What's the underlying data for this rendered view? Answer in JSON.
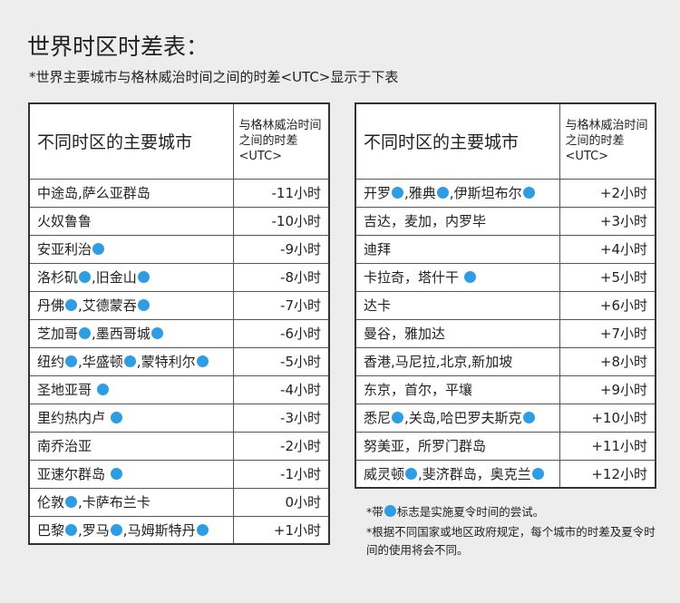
{
  "header": {
    "title": "世界时区时差表：",
    "subtitle": "*世界主要城市与格林威治时间之间的时差<UTC>显示于下表"
  },
  "left_table": {
    "header": [
      "不同时区的主要城市",
      "与格林威治时间之间的时差<UTC>"
    ],
    "rows": [
      {
        "city": [
          "中途岛,萨么亚群岛"
        ],
        "offset": "-11小时"
      },
      {
        "city": [
          "火奴鲁鲁"
        ],
        "offset": "-10小时"
      },
      {
        "city": [
          "安亚利治"
        ],
        "offset": "-9小时"
      },
      {
        "city": [
          "洛杉矶",
          ",旧金山"
        ],
        "offset": "-8小时"
      },
      {
        "city": [
          "丹佛",
          ",艾德蒙吞"
        ],
        "offset": "-7小时"
      },
      {
        "city": [
          "芝加哥",
          ",墨西哥城"
        ],
        "offset": "-6小时"
      },
      {
        "city": [
          "纽约",
          ",华盛顿",
          ",蒙特利尔"
        ],
        "offset": "-5小时"
      },
      {
        "city": [
          "圣地亚哥"
        ],
        "offset": "-4小时"
      },
      {
        "city": [
          "里约热内卢"
        ],
        "offset": "-3小时"
      },
      {
        "city": [
          "南乔治亚"
        ],
        "offset": "-2小时"
      },
      {
        "city": [
          "亚速尔群岛"
        ],
        "offset": "-1小时"
      },
      {
        "city": [
          "伦敦",
          ",卡萨布兰卡"
        ],
        "offset": "0小时"
      },
      {
        "city": [
          "巴黎",
          ",罗马",
          ",马姆斯特丹"
        ],
        "offset": "+1小时"
      }
    ]
  },
  "right_table": {
    "header": [
      "不同时区的主要城市",
      "与格林威治时间之间的时差<UTC>"
    ],
    "rows": [
      {
        "city": [
          "开罗",
          ",雅典",
          ",伊斯坦布尔"
        ],
        "offset": "+2小时"
      },
      {
        "city": [
          "吉达，麦加，内罗毕"
        ],
        "offset": "+3小时"
      },
      {
        "city": [
          "迪拜"
        ],
        "offset": "+4小时"
      },
      {
        "city": [
          "卡拉奇，塔什干"
        ],
        "offset": "+5小时"
      },
      {
        "city": [
          "达卡"
        ],
        "offset": "+6小时"
      },
      {
        "city": [
          "曼谷，雅加达"
        ],
        "offset": "+7小时"
      },
      {
        "city": [
          "香港,马尼拉,北京,新加坡"
        ],
        "offset": "+8小时"
      },
      {
        "city": [
          "东京，首尔，平壤"
        ],
        "offset": "+9小时"
      },
      {
        "city": [
          "悉尼",
          ",关岛,哈巴罗夫斯克"
        ],
        "offset": "+10小时"
      },
      {
        "city": [
          "努美亚，所罗门群岛"
        ],
        "offset": "+11小时"
      },
      {
        "city": [
          "威灵顿",
          ",斐济群岛，奥克兰"
        ],
        "offset": "+12小时"
      }
    ]
  },
  "notes": {
    "dst_note": [
      "*带",
      "标志是实施夏令时间的尝试。"
    ],
    "note": "*根据不同国家或地区政府规定，每个城市的时差及夏令时间的使用将会不同。"
  }
}
